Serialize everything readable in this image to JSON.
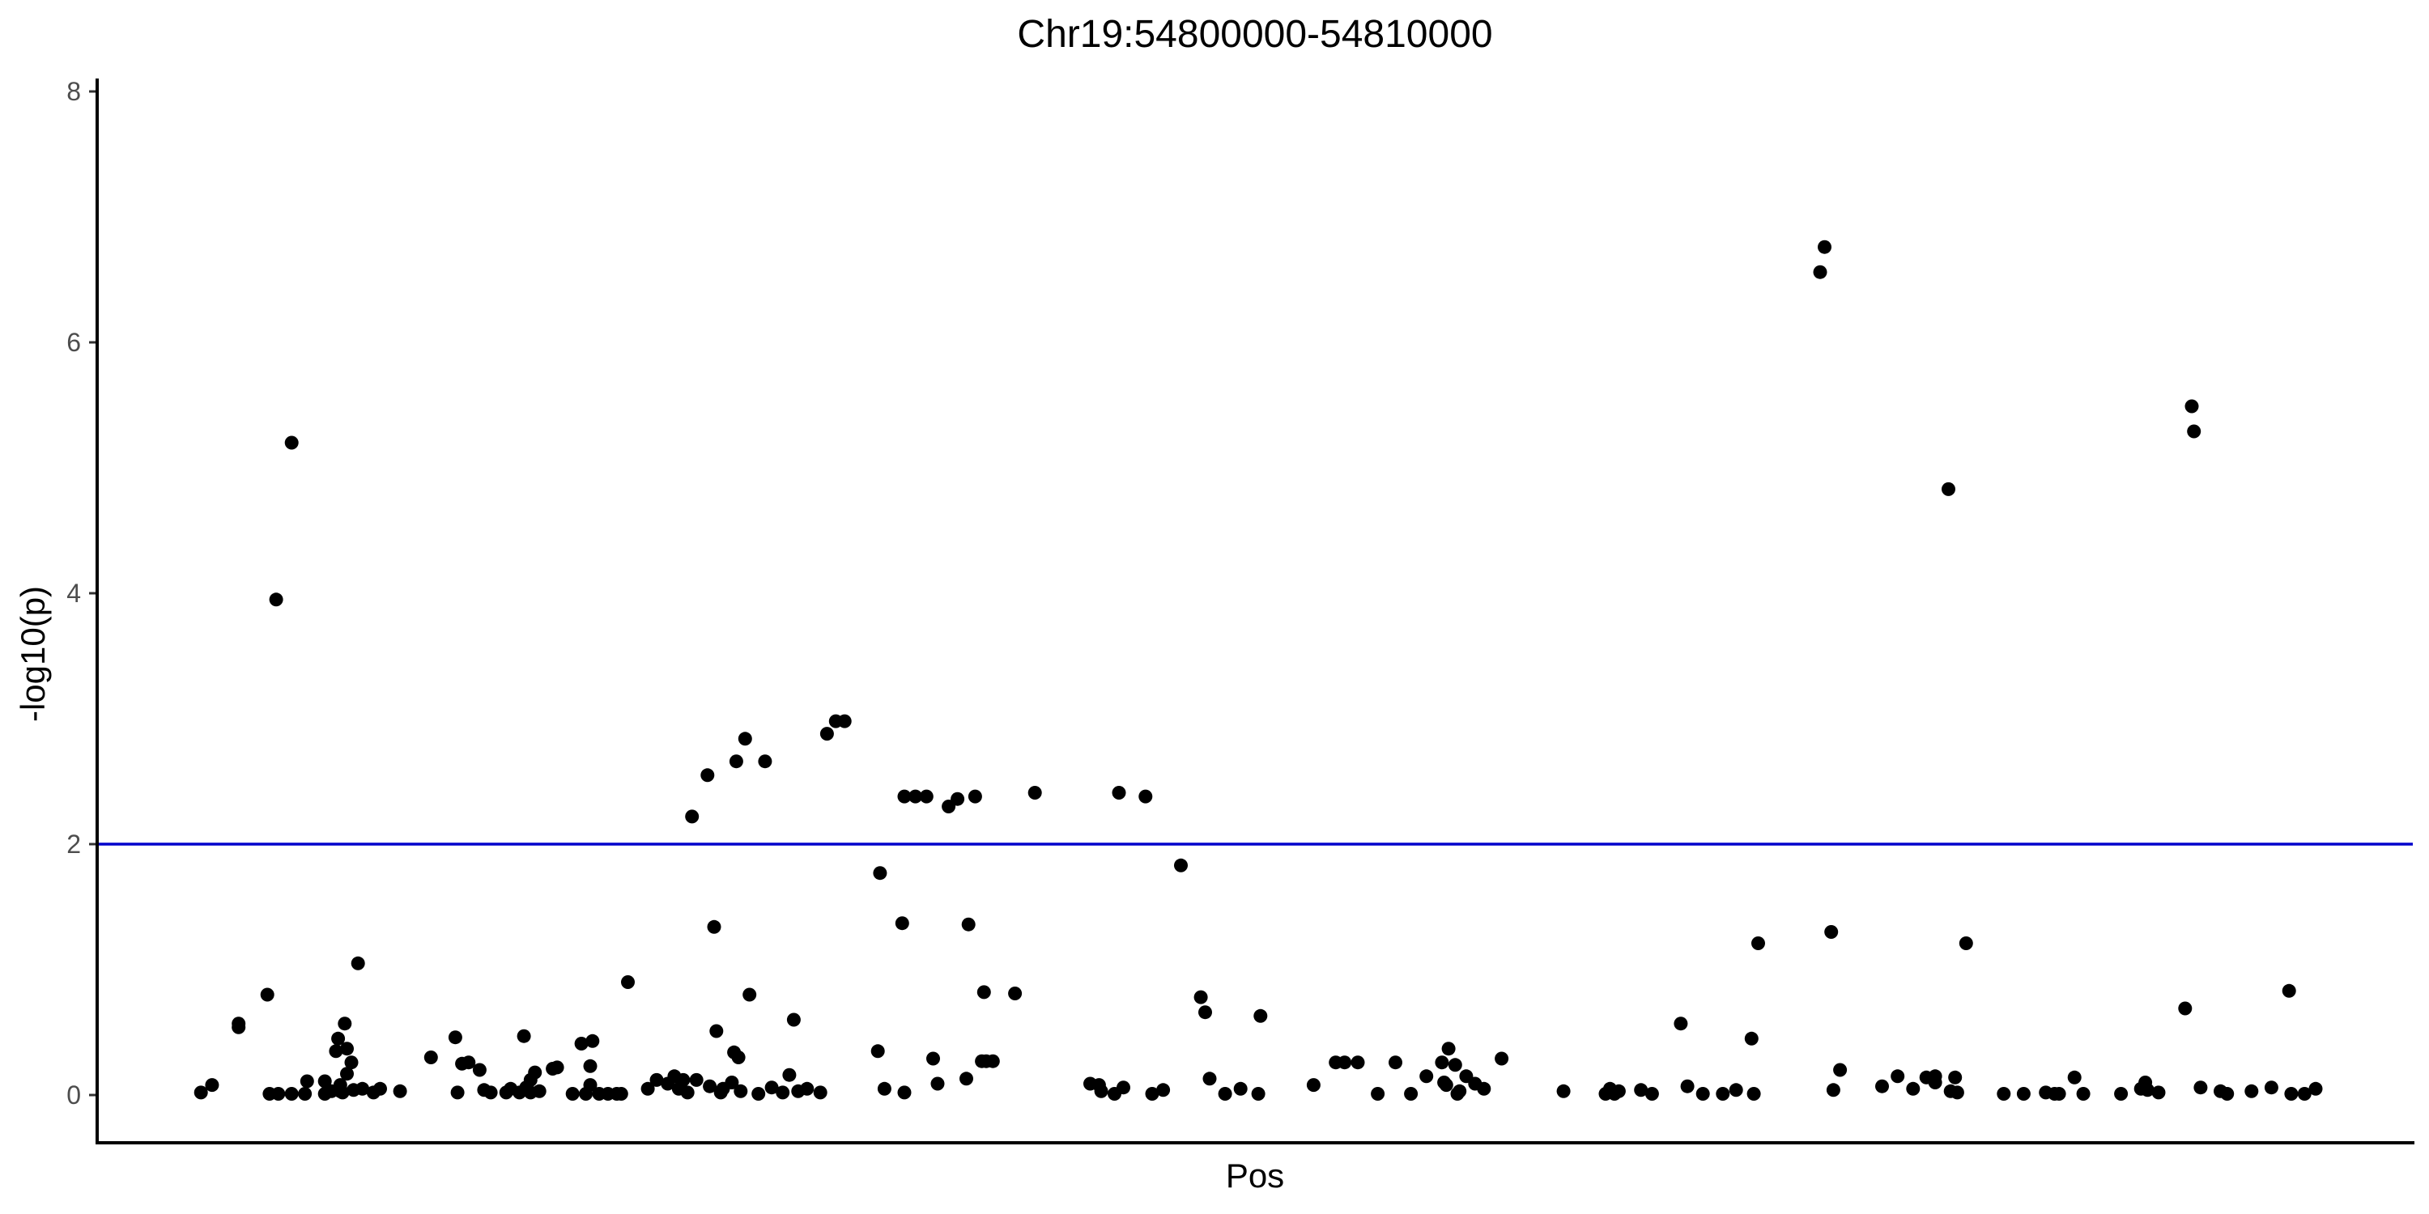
{
  "chart_data": {
    "type": "scatter",
    "title": "Chr19:54800000-54810000",
    "xlabel": "Pos",
    "ylabel": "-log10(p)",
    "ylim": [
      -0.4,
      8.1
    ],
    "xlim": [
      0,
      1000
    ],
    "yticks": [
      "0",
      "2",
      "4",
      "6",
      "8"
    ],
    "y_tick_values": [
      0,
      2,
      4,
      6,
      8
    ],
    "x_ticks_shown": false,
    "grid": false,
    "legend": "none",
    "threshold": {
      "y": 2,
      "color": "#0000cc"
    },
    "point_color": "#000000",
    "points": [
      [
        44,
        0.02
      ],
      [
        49,
        0.08
      ],
      [
        61,
        0.57
      ],
      [
        61,
        0.54
      ],
      [
        74,
        0.8
      ],
      [
        75,
        0.01
      ],
      [
        79,
        0.01
      ],
      [
        78,
        3.95
      ],
      [
        85,
        5.2
      ],
      [
        85,
        0.01
      ],
      [
        91,
        0.01
      ],
      [
        92,
        0.11
      ],
      [
        100,
        0.01
      ],
      [
        100,
        0.11
      ],
      [
        103,
        0.03
      ],
      [
        105,
        0.35
      ],
      [
        106,
        0.45
      ],
      [
        107,
        0.03
      ],
      [
        107,
        0.08
      ],
      [
        108,
        0.02
      ],
      [
        109,
        0.57
      ],
      [
        110,
        0.37
      ],
      [
        110,
        0.17
      ],
      [
        112,
        0.26
      ],
      [
        113,
        0.04
      ],
      [
        115,
        1.05
      ],
      [
        117,
        0.05
      ],
      [
        122,
        0.02
      ],
      [
        125,
        0.05
      ],
      [
        134,
        0.03
      ],
      [
        148,
        0.3
      ],
      [
        159,
        0.46
      ],
      [
        160,
        0.02
      ],
      [
        162,
        0.25
      ],
      [
        165,
        0.26
      ],
      [
        170,
        0.2
      ],
      [
        172,
        0.04
      ],
      [
        175,
        0.02
      ],
      [
        182,
        0.02
      ],
      [
        184,
        0.05
      ],
      [
        188,
        0.02
      ],
      [
        190,
        0.47
      ],
      [
        191,
        0.06
      ],
      [
        193,
        0.12
      ],
      [
        193,
        0.02
      ],
      [
        195,
        0.18
      ],
      [
        197,
        0.03
      ],
      [
        203,
        0.21
      ],
      [
        205,
        0.22
      ],
      [
        212,
        0.01
      ],
      [
        216,
        0.41
      ],
      [
        218,
        0.01
      ],
      [
        220,
        0.08
      ],
      [
        220,
        0.23
      ],
      [
        221,
        0.43
      ],
      [
        224,
        0.01
      ],
      [
        228,
        0.01
      ],
      [
        232,
        0.01
      ],
      [
        234,
        0.01
      ],
      [
        237,
        0.9
      ],
      [
        246,
        0.05
      ],
      [
        250,
        0.12
      ],
      [
        255,
        0.09
      ],
      [
        258,
        0.15
      ],
      [
        260,
        0.05
      ],
      [
        262,
        0.12
      ],
      [
        264,
        0.02
      ],
      [
        266,
        2.22
      ],
      [
        268,
        0.12
      ],
      [
        273,
        2.55
      ],
      [
        274,
        0.07
      ],
      [
        276,
        1.34
      ],
      [
        277,
        0.51
      ],
      [
        279,
        0.02
      ],
      [
        280,
        0.05
      ],
      [
        284,
        0.1
      ],
      [
        285,
        0.34
      ],
      [
        286,
        2.66
      ],
      [
        287,
        0.3
      ],
      [
        288,
        0.03
      ],
      [
        290,
        2.84
      ],
      [
        292,
        0.8
      ],
      [
        296,
        0.01
      ],
      [
        299,
        2.66
      ],
      [
        302,
        0.06
      ],
      [
        307,
        0.02
      ],
      [
        310,
        0.16
      ],
      [
        312,
        0.6
      ],
      [
        314,
        0.03
      ],
      [
        318,
        0.05
      ],
      [
        324,
        0.02
      ],
      [
        327,
        2.88
      ],
      [
        331,
        2.98
      ],
      [
        335,
        2.98
      ],
      [
        350,
        0.35
      ],
      [
        351,
        1.77
      ],
      [
        353,
        0.05
      ],
      [
        361,
        1.37
      ],
      [
        362,
        0.02
      ],
      [
        362,
        2.38
      ],
      [
        367,
        2.38
      ],
      [
        372,
        2.38
      ],
      [
        375,
        0.29
      ],
      [
        377,
        0.09
      ],
      [
        382,
        2.3
      ],
      [
        386,
        2.36
      ],
      [
        390,
        0.13
      ],
      [
        391,
        1.36
      ],
      [
        394,
        2.38
      ],
      [
        397,
        0.27
      ],
      [
        398,
        0.82
      ],
      [
        399,
        0.27
      ],
      [
        402,
        0.27
      ],
      [
        412,
        0.81
      ],
      [
        421,
        2.41
      ],
      [
        446,
        0.09
      ],
      [
        450,
        0.08
      ],
      [
        451,
        0.03
      ],
      [
        457,
        0.01
      ],
      [
        459,
        2.41
      ],
      [
        461,
        0.06
      ],
      [
        471,
        2.38
      ],
      [
        474,
        0.01
      ],
      [
        479,
        0.04
      ],
      [
        487,
        1.83
      ],
      [
        496,
        0.78
      ],
      [
        498,
        0.66
      ],
      [
        500,
        0.13
      ],
      [
        507,
        0.01
      ],
      [
        514,
        0.05
      ],
      [
        522,
        0.01
      ],
      [
        523,
        0.63
      ],
      [
        547,
        0.08
      ],
      [
        557,
        0.26
      ],
      [
        561,
        0.26
      ],
      [
        567,
        0.26
      ],
      [
        576,
        0.01
      ],
      [
        584,
        0.26
      ],
      [
        591,
        0.01
      ],
      [
        598,
        0.15
      ],
      [
        605,
        0.26
      ],
      [
        606,
        0.1
      ],
      [
        607,
        0.08
      ],
      [
        608,
        0.37
      ],
      [
        611,
        0.24
      ],
      [
        612,
        0.01
      ],
      [
        613,
        0.03
      ],
      [
        616,
        0.15
      ],
      [
        620,
        0.09
      ],
      [
        624,
        0.05
      ],
      [
        632,
        0.29
      ],
      [
        660,
        0.03
      ],
      [
        679,
        0.01
      ],
      [
        681,
        0.05
      ],
      [
        683,
        0.01
      ],
      [
        685,
        0.03
      ],
      [
        695,
        0.04
      ],
      [
        700,
        0.01
      ],
      [
        713,
        0.57
      ],
      [
        716,
        0.07
      ],
      [
        723,
        0.01
      ],
      [
        732,
        0.01
      ],
      [
        738,
        0.04
      ],
      [
        745,
        0.45
      ],
      [
        746,
        0.01
      ],
      [
        748,
        1.21
      ],
      [
        776,
        6.56
      ],
      [
        778,
        6.76
      ],
      [
        781,
        1.3
      ],
      [
        782,
        0.04
      ],
      [
        785,
        0.2
      ],
      [
        804,
        0.07
      ],
      [
        811,
        0.15
      ],
      [
        818,
        0.05
      ],
      [
        824,
        0.14
      ],
      [
        827,
        0.13
      ],
      [
        828,
        0.15
      ],
      [
        828,
        0.1
      ],
      [
        834,
        4.83
      ],
      [
        835,
        0.03
      ],
      [
        837,
        0.14
      ],
      [
        838,
        0.02
      ],
      [
        842,
        1.21
      ],
      [
        859,
        0.01
      ],
      [
        868,
        0.01
      ],
      [
        878,
        0.02
      ],
      [
        882,
        0.01
      ],
      [
        884,
        0.01
      ],
      [
        891,
        0.14
      ],
      [
        895,
        0.01
      ],
      [
        912,
        0.01
      ],
      [
        921,
        0.05
      ],
      [
        923,
        0.1
      ],
      [
        924,
        0.04
      ],
      [
        929,
        0.02
      ],
      [
        941,
        0.69
      ],
      [
        944,
        5.49
      ],
      [
        945,
        5.29
      ],
      [
        948,
        0.06
      ],
      [
        957,
        0.03
      ],
      [
        960,
        0.01
      ],
      [
        971,
        0.03
      ],
      [
        980,
        0.06
      ],
      [
        988,
        0.83
      ],
      [
        989,
        0.01
      ],
      [
        995,
        0.01
      ],
      [
        1000,
        0.05
      ]
    ]
  }
}
